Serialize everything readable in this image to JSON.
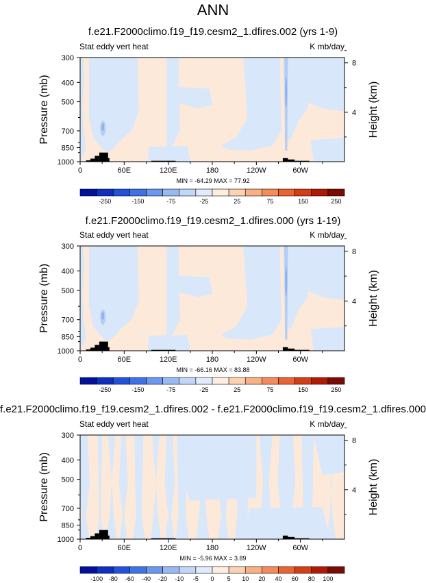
{
  "page_title": "ANN",
  "colors": {
    "neg_fill": "#d8e8fa",
    "pos_fill": "#fde9d9",
    "blue_dark": "#8eb2ec",
    "blue_mid": "#b3cdf3",
    "terrain": "#000000",
    "frame": "#000000"
  },
  "chart_data": [
    {
      "type": "heatmap",
      "title": "f.e21.F2000climo.f19_f19.cesm2_1.dfires.002 (yrs 1-9)",
      "left_label": "Stat eddy vert heat",
      "right_label": "K mb/day",
      "ylabel": "Pressure (mb)",
      "ylabel_right": "Height (km)",
      "y_ticks": [
        "300",
        "400",
        "500",
        "700",
        "850",
        "1000"
      ],
      "y_tick_values": [
        300,
        400,
        500,
        700,
        850,
        1000
      ],
      "right_ticks": [
        "8",
        "4"
      ],
      "right_tick_values": [
        8,
        4
      ],
      "x_ticks": [
        "0",
        "60E",
        "120E",
        "180",
        "120W",
        "60W"
      ],
      "x_tick_values": [
        0,
        60,
        120,
        180,
        240,
        300
      ],
      "xlim": [
        0,
        360
      ],
      "ylim_pressure": [
        1000,
        300
      ],
      "stats": "MIN = -64.29  MAX =  77.92",
      "colorbar": {
        "labels": [
          "-250",
          "-150",
          "-75",
          "-25",
          "25",
          "75",
          "150",
          "250"
        ],
        "colors": [
          "#03109b",
          "#0e2fbf",
          "#2451db",
          "#3f72e6",
          "#6b97ee",
          "#9ab9f3",
          "#c3d6f7",
          "#e1ebfb",
          "#fdeee2",
          "#fbd2b4",
          "#f8b085",
          "#f48b5a",
          "#ea6432",
          "#d43d16",
          "#b01a05",
          "#7b0a02"
        ]
      }
    },
    {
      "type": "heatmap",
      "title": "f.e21.F2000climo.f19_f19.cesm2_1.dfires.000 (yrs 1-19)",
      "left_label": "Stat eddy vert heat",
      "right_label": "K mb/day",
      "ylabel": "Pressure (mb)",
      "ylabel_right": "Height (km)",
      "y_ticks": [
        "300",
        "400",
        "500",
        "700",
        "850",
        "1000"
      ],
      "y_tick_values": [
        300,
        400,
        500,
        700,
        850,
        1000
      ],
      "right_ticks": [
        "8",
        "4"
      ],
      "right_tick_values": [
        8,
        4
      ],
      "x_ticks": [
        "0",
        "60E",
        "120E",
        "180",
        "120W",
        "60W"
      ],
      "x_tick_values": [
        0,
        60,
        120,
        180,
        240,
        300
      ],
      "xlim": [
        0,
        360
      ],
      "ylim_pressure": [
        1000,
        300
      ],
      "stats": "MIN = -66.16  MAX =  83.88",
      "colorbar": {
        "labels": [
          "-250",
          "-150",
          "-75",
          "-25",
          "25",
          "75",
          "150",
          "250"
        ],
        "colors": [
          "#03109b",
          "#0e2fbf",
          "#2451db",
          "#3f72e6",
          "#6b97ee",
          "#9ab9f3",
          "#c3d6f7",
          "#e1ebfb",
          "#fdeee2",
          "#fbd2b4",
          "#f8b085",
          "#f48b5a",
          "#ea6432",
          "#d43d16",
          "#b01a05",
          "#7b0a02"
        ]
      }
    },
    {
      "type": "heatmap",
      "title": "f.e21.F2000climo.f19_f19.cesm2_1.dfires.002 - f.e21.F2000climo.f19_f19.cesm2_1.dfires.000",
      "left_label": "Stat eddy vert heat",
      "right_label": "K mb/day",
      "ylabel": "Pressure (mb)",
      "ylabel_right": "Height (km)",
      "y_ticks": [
        "300",
        "400",
        "500",
        "700",
        "850",
        "1000"
      ],
      "y_tick_values": [
        300,
        400,
        500,
        700,
        850,
        1000
      ],
      "right_ticks": [
        "8",
        "4"
      ],
      "right_tick_values": [
        8,
        4
      ],
      "x_ticks": [
        "0",
        "60E",
        "120E",
        "180",
        "120W",
        "60W"
      ],
      "x_tick_values": [
        0,
        60,
        120,
        180,
        240,
        300
      ],
      "xlim": [
        0,
        360
      ],
      "ylim_pressure": [
        1000,
        300
      ],
      "stats": "MIN = -5.96  MAX =  3.89",
      "colorbar": {
        "labels": [
          "-100",
          "-80",
          "-60",
          "-40",
          "-20",
          "-10",
          "-5",
          "0",
          "5",
          "10",
          "20",
          "40",
          "60",
          "80",
          "100"
        ],
        "colors": [
          "#03109b",
          "#0e2fbf",
          "#2451db",
          "#3f72e6",
          "#6b97ee",
          "#9ab9f3",
          "#c3d6f7",
          "#e1ebfb",
          "#fdeee2",
          "#fbd2b4",
          "#f8b085",
          "#f48b5a",
          "#ea6432",
          "#d43d16",
          "#b01a05",
          "#7b0a02"
        ]
      }
    }
  ]
}
